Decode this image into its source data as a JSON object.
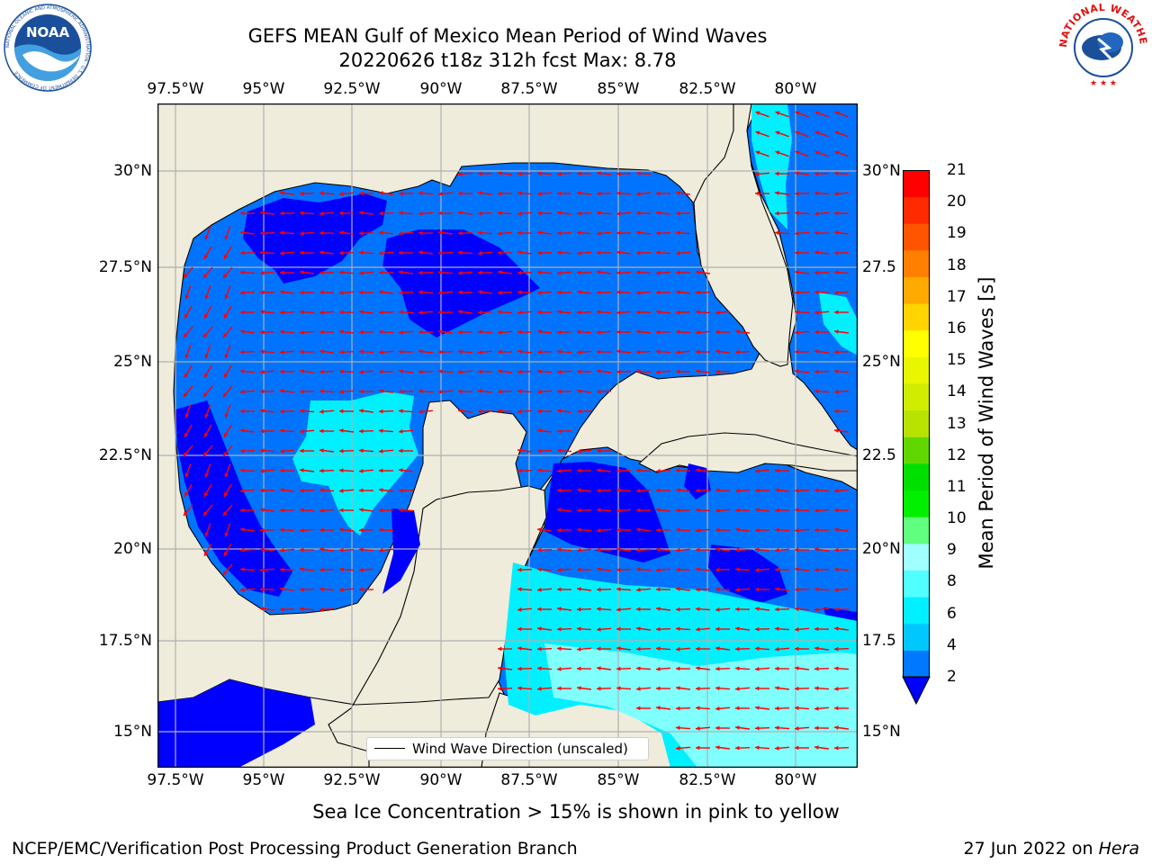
{
  "header": {
    "title_line1": "GEFS MEAN Gulf of Mexico Mean Period of Wind Waves",
    "title_line2": "20220626 t18z 312h fcst   Max: 8.78"
  },
  "logos": {
    "left_text": "NOAA",
    "left_ring_text": "NATIONAL OCEANIC AND ATMOSPHERIC ADMINISTRATION · U.S. DEPARTMENT OF COMMERCE",
    "right_ring_text": "NATIONAL WEATHER SERVICE"
  },
  "map": {
    "lon_labels": [
      "97.5°W",
      "95°W",
      "92.5°W",
      "90°W",
      "87.5°W",
      "85°W",
      "82.5°W",
      "80°W"
    ],
    "lat_labels_left": [
      "30°N",
      "27.5°N",
      "25°N",
      "22.5°N",
      "20°N",
      "17.5°N",
      "15°N"
    ],
    "lat_labels_right": [
      "30°N",
      "27.5",
      "25°N",
      "22.5",
      "20°N",
      "17.5",
      "15°N"
    ],
    "lon_range": [
      -98,
      -78.2
    ],
    "lat_range": [
      14,
      31.8
    ],
    "legend_label": "Wind Wave Direction (unscaled)",
    "colors": {
      "land": "#efecdc",
      "ocean_level1": "#0074ff",
      "ocean_level0": "#0000ff",
      "ocean_level2": "#00f0ff",
      "ocean_level3": "#80ffff",
      "arrow": "#ff0000"
    }
  },
  "colorbar": {
    "label": "Mean Period of Wind Waves [s]",
    "ticks": [
      "21",
      "20",
      "19",
      "18",
      "17",
      "16",
      "15",
      "14",
      "13",
      "12",
      "11",
      "10",
      "9",
      "8",
      "6",
      "4",
      "2"
    ],
    "colors_top_to_bottom": [
      "#ff0000",
      "#ff2a00",
      "#ff5500",
      "#ff8000",
      "#ffaa00",
      "#ffd400",
      "#ffff00",
      "#e8f600",
      "#d0ec00",
      "#b8e200",
      "#60d800",
      "#00e000",
      "#00f000",
      "#60ff80",
      "#a0ffff",
      "#50ffff",
      "#00f0ff",
      "#00c8ff",
      "#0078ff"
    ]
  },
  "footer": {
    "note": "Sea Ice Concentration > 15% is shown in pink to yellow",
    "left": "NCEP/EMC/Verification Post Processing Product Generation Branch",
    "date": "27 Jun 2022 on ",
    "host": "Hera"
  }
}
